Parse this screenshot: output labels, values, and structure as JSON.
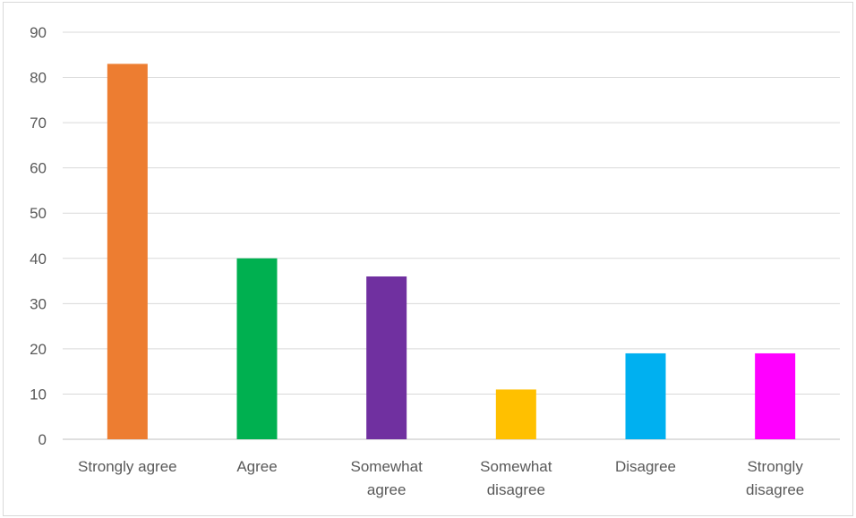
{
  "chart_data": {
    "type": "bar",
    "categories": [
      [
        "Strongly agree"
      ],
      [
        "Agree"
      ],
      [
        "Somewhat",
        "agree"
      ],
      [
        "Somewhat",
        "disagree"
      ],
      [
        "Disagree"
      ],
      [
        "Strongly",
        "disagree"
      ]
    ],
    "values": [
      83,
      40,
      36,
      11,
      19,
      19
    ],
    "colors": [
      "#ED7D31",
      "#00B050",
      "#7030A0",
      "#FFC000",
      "#00B0F0",
      "#FF00FF"
    ],
    "ylim": [
      0,
      90
    ],
    "yticks": [
      0,
      10,
      20,
      30,
      40,
      50,
      60,
      70,
      80,
      90
    ],
    "grid": true,
    "title": "",
    "xlabel": "",
    "ylabel": ""
  }
}
